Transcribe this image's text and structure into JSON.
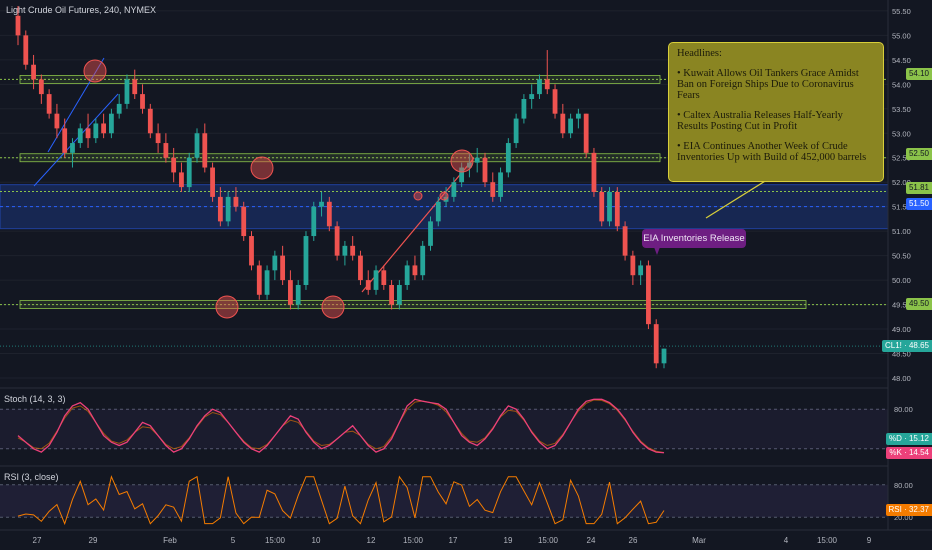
{
  "header": {
    "symbol_title": "Light Crude Oil Futures, 240, NYMEX"
  },
  "headline_box": {
    "title": "Headlines:",
    "items": [
      "• Kuwait Allows Oil Tankers Grace Amidst Ban on Foreign Ships Due to Coronavirus Fears",
      "• Caltex Australia Releases Half-Yearly Results Posting Cut in Profit",
      "• EIA Continues Another Week of Crude Inventories Up with Build of 452,000 barrels"
    ]
  },
  "callout": {
    "label": "EIA Inventories Release"
  },
  "price_axis": {
    "ticks": [
      "55.50",
      "55.00",
      "54.50",
      "54.00",
      "53.50",
      "53.00",
      "52.50",
      "52.00",
      "51.50",
      "51.00",
      "50.50",
      "50.00",
      "49.50",
      "49.00",
      "48.50",
      "48.00"
    ]
  },
  "level_tags": {
    "r1": "54.10",
    "r2": "52.50",
    "r3": "51.81",
    "mid": "51.50",
    "s1": "49.50",
    "last": "CL1! · 48.65"
  },
  "stoch_panel": {
    "title": "Stoch (14, 3, 3)",
    "ticks": [
      "80.00",
      "20.00"
    ],
    "tag_d": "%D · 15.12",
    "tag_k": "%K · 14.54"
  },
  "rsi_panel": {
    "title": "RSI (3, close)",
    "ticks": [
      "80.00",
      "20.00"
    ],
    "tag": "RSI · 32.37"
  },
  "time_axis": {
    "labels": [
      "27",
      "29",
      "Feb",
      "5",
      "15:00",
      "10",
      "12",
      "15:00",
      "17",
      "19",
      "15:00",
      "24",
      "26",
      "Mar",
      "4",
      "15:00",
      "9"
    ]
  },
  "colors": {
    "background": "#131722",
    "up": "#26a69a",
    "down": "#ef5350",
    "support_band": "#2962ff",
    "level_line": "#8bc34a",
    "stoch_k": "#ec407a",
    "stoch_d": "#f57c00",
    "rsi": "#f57c00",
    "headline_bg": "#8a8522",
    "callout_bg": "#6e1e82"
  },
  "chart_data": {
    "type": "candlestick",
    "symbol": "Light Crude Oil Futures",
    "interval": "240",
    "exchange": "NYMEX",
    "y_range": [
      48.0,
      55.7
    ],
    "candles_ohlc": [
      [
        55.4,
        55.6,
        54.8,
        55.0
      ],
      [
        55.0,
        55.1,
        54.3,
        54.4
      ],
      [
        54.4,
        54.6,
        53.9,
        54.1
      ],
      [
        54.1,
        54.2,
        53.6,
        53.8
      ],
      [
        53.8,
        53.9,
        53.3,
        53.4
      ],
      [
        53.4,
        53.6,
        52.9,
        53.1
      ],
      [
        53.1,
        53.3,
        52.5,
        52.6
      ],
      [
        52.6,
        52.9,
        52.3,
        52.8
      ],
      [
        52.8,
        53.2,
        52.7,
        53.1
      ],
      [
        53.1,
        53.4,
        52.7,
        52.9
      ],
      [
        52.9,
        53.3,
        52.8,
        53.2
      ],
      [
        53.2,
        53.4,
        52.9,
        53.0
      ],
      [
        53.0,
        53.5,
        52.9,
        53.4
      ],
      [
        53.4,
        53.8,
        53.3,
        53.6
      ],
      [
        53.6,
        54.2,
        53.5,
        54.1
      ],
      [
        54.1,
        54.3,
        53.7,
        53.8
      ],
      [
        53.8,
        54.0,
        53.4,
        53.5
      ],
      [
        53.5,
        53.6,
        52.9,
        53.0
      ],
      [
        53.0,
        53.2,
        52.6,
        52.8
      ],
      [
        52.8,
        53.0,
        52.4,
        52.5
      ],
      [
        52.5,
        52.7,
        52.0,
        52.2
      ],
      [
        52.2,
        52.4,
        51.8,
        51.9
      ],
      [
        51.9,
        52.6,
        51.8,
        52.5
      ],
      [
        52.5,
        53.1,
        52.4,
        53.0
      ],
      [
        53.0,
        53.2,
        52.2,
        52.3
      ],
      [
        52.3,
        52.4,
        51.6,
        51.7
      ],
      [
        51.7,
        51.9,
        51.1,
        51.2
      ],
      [
        51.2,
        51.8,
        51.1,
        51.7
      ],
      [
        51.7,
        51.9,
        51.4,
        51.5
      ],
      [
        51.5,
        51.6,
        50.8,
        50.9
      ],
      [
        50.9,
        51.0,
        50.2,
        50.3
      ],
      [
        50.3,
        50.4,
        49.6,
        49.7
      ],
      [
        49.7,
        50.3,
        49.6,
        50.2
      ],
      [
        50.2,
        50.6,
        50.0,
        50.5
      ],
      [
        50.5,
        50.7,
        49.9,
        50.0
      ],
      [
        50.0,
        50.2,
        49.4,
        49.5
      ],
      [
        49.5,
        50.0,
        49.4,
        49.9
      ],
      [
        49.9,
        51.0,
        49.8,
        50.9
      ],
      [
        50.9,
        51.6,
        50.8,
        51.5
      ],
      [
        51.5,
        51.8,
        51.3,
        51.6
      ],
      [
        51.6,
        51.7,
        51.0,
        51.1
      ],
      [
        51.1,
        51.2,
        50.4,
        50.5
      ],
      [
        50.5,
        50.8,
        50.3,
        50.7
      ],
      [
        50.7,
        50.9,
        50.4,
        50.5
      ],
      [
        50.5,
        50.6,
        49.9,
        50.0
      ],
      [
        50.0,
        50.2,
        49.7,
        49.8
      ],
      [
        49.8,
        50.3,
        49.7,
        50.2
      ],
      [
        50.2,
        50.3,
        49.8,
        49.9
      ],
      [
        49.9,
        50.0,
        49.4,
        49.5
      ],
      [
        49.5,
        50.0,
        49.4,
        49.9
      ],
      [
        49.9,
        50.4,
        49.8,
        50.3
      ],
      [
        50.3,
        50.5,
        50.0,
        50.1
      ],
      [
        50.1,
        50.8,
        50.0,
        50.7
      ],
      [
        50.7,
        51.3,
        50.6,
        51.2
      ],
      [
        51.2,
        51.7,
        51.1,
        51.6
      ],
      [
        51.6,
        51.9,
        51.5,
        51.7
      ],
      [
        51.7,
        52.1,
        51.6,
        52.0
      ],
      [
        52.0,
        52.4,
        51.9,
        52.3
      ],
      [
        52.3,
        52.6,
        52.1,
        52.4
      ],
      [
        52.4,
        52.7,
        52.2,
        52.5
      ],
      [
        52.5,
        52.6,
        51.9,
        52.0
      ],
      [
        52.0,
        52.2,
        51.6,
        51.7
      ],
      [
        51.7,
        52.3,
        51.6,
        52.2
      ],
      [
        52.2,
        52.9,
        52.1,
        52.8
      ],
      [
        52.8,
        53.4,
        52.7,
        53.3
      ],
      [
        53.3,
        53.8,
        53.2,
        53.7
      ],
      [
        53.7,
        54.0,
        53.5,
        53.8
      ],
      [
        53.8,
        54.2,
        53.7,
        54.1
      ],
      [
        54.1,
        54.7,
        53.8,
        53.9
      ],
      [
        53.9,
        54.0,
        53.3,
        53.4
      ],
      [
        53.4,
        53.6,
        52.9,
        53.0
      ],
      [
        53.0,
        53.4,
        52.9,
        53.3
      ],
      [
        53.3,
        53.5,
        53.1,
        53.4
      ],
      [
        53.4,
        53.4,
        52.5,
        52.6
      ],
      [
        52.6,
        52.7,
        51.7,
        51.8
      ],
      [
        51.8,
        51.9,
        51.1,
        51.2
      ],
      [
        51.2,
        51.9,
        51.1,
        51.8
      ],
      [
        51.8,
        51.9,
        51.0,
        51.1
      ],
      [
        51.1,
        51.2,
        50.4,
        50.5
      ],
      [
        50.5,
        50.6,
        49.9,
        50.1
      ],
      [
        50.1,
        50.4,
        49.9,
        50.3
      ],
      [
        50.3,
        50.4,
        49.0,
        49.1
      ],
      [
        49.1,
        49.2,
        48.2,
        48.3
      ],
      [
        48.3,
        48.6,
        48.2,
        48.6
      ]
    ],
    "horizontal_levels": [
      54.1,
      52.5,
      51.81,
      49.5
    ],
    "support_band": [
      51.05,
      51.95
    ],
    "last_price": 48.65,
    "stochastic": {
      "params": "14, 3, 3",
      "k": 14.54,
      "d": 15.12,
      "bands": [
        20,
        80
      ]
    },
    "rsi": {
      "params": "3, close",
      "value": 32.37,
      "bands": [
        20,
        80
      ]
    }
  }
}
